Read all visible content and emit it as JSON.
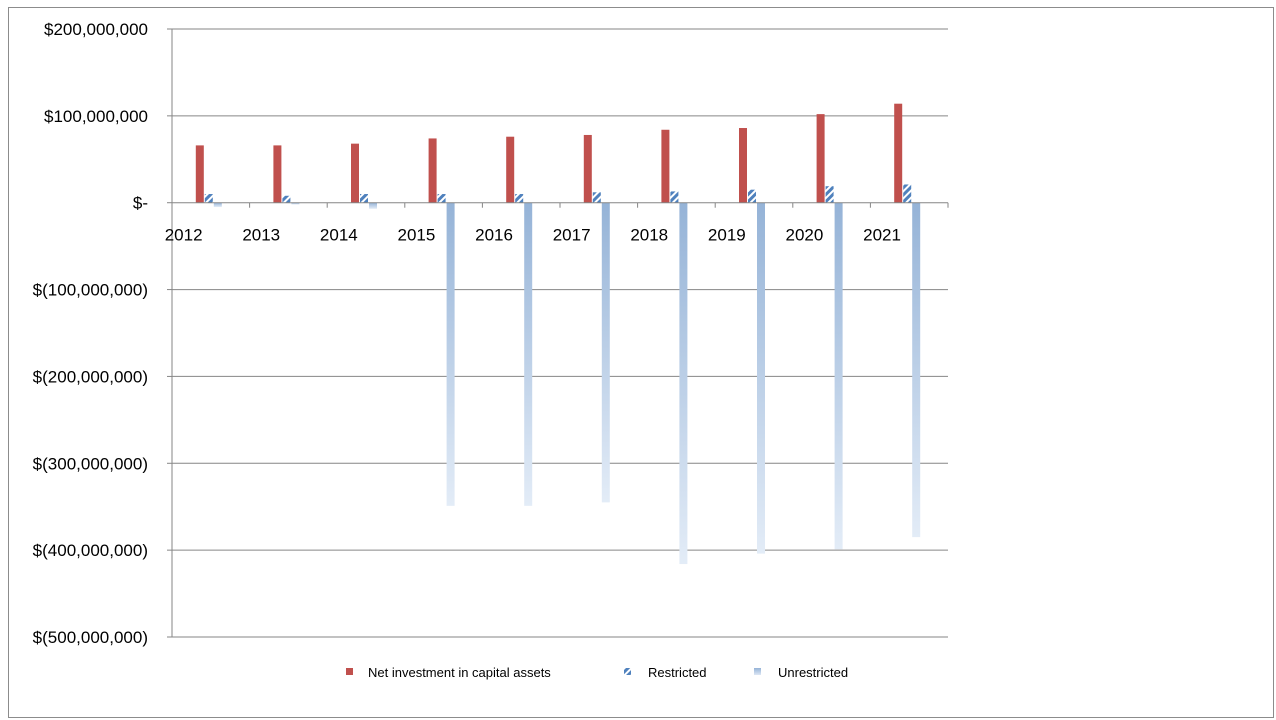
{
  "chart_data": {
    "type": "bar",
    "title": "",
    "xlabel": "",
    "ylabel": "",
    "categories": [
      "2012",
      "2013",
      "2014",
      "2015",
      "2016",
      "2017",
      "2018",
      "2019",
      "2020",
      "2021"
    ],
    "series": [
      {
        "name": "Net investment in capital assets",
        "color": "#c0504d",
        "values": [
          66000000,
          66000000,
          68000000,
          74000000,
          76000000,
          78000000,
          84000000,
          86000000,
          102000000,
          114000000
        ]
      },
      {
        "name": "Restricted",
        "color": "#4f81bd",
        "pattern": "diagonal-stripes",
        "values": [
          10000000,
          8000000,
          10000000,
          10000000,
          10000000,
          12000000,
          13000000,
          15000000,
          19000000,
          21000000
        ]
      },
      {
        "name": "Unrestricted",
        "color": "#95b3d7",
        "pattern": "gradient",
        "values": [
          -5000000,
          -2000000,
          -7000000,
          -349000000,
          -349000000,
          -345000000,
          -416000000,
          -404000000,
          -399000000,
          -385000000
        ]
      }
    ],
    "ylim": [
      -500000000,
      200000000
    ],
    "yticks": [
      200000000,
      100000000,
      0,
      -100000000,
      -200000000,
      -300000000,
      -400000000,
      -500000000
    ],
    "ytick_labels": [
      "$200,000,000",
      "$100,000,000",
      "$-",
      "$(100,000,000)",
      "$(200,000,000)",
      "$(300,000,000)",
      "$(400,000,000)",
      "$(500,000,000)"
    ],
    "grid": true,
    "legend_position": "bottom"
  }
}
